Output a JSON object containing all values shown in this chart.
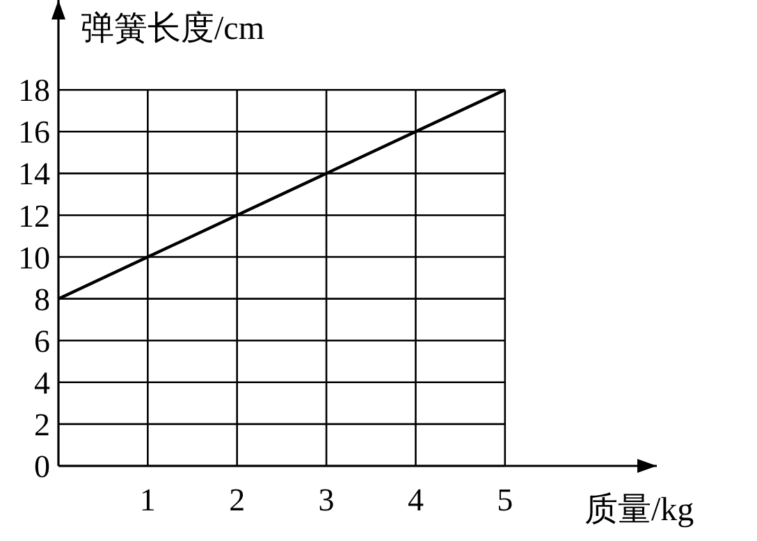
{
  "chart_data": {
    "type": "line",
    "xlabel": "质量/kg",
    "ylabel": "弹簧长度/cm",
    "x": [
      0,
      1,
      2,
      3,
      4,
      5
    ],
    "series": [
      {
        "color": "#000000",
        "values": [
          8,
          10,
          12,
          14,
          16,
          18
        ]
      }
    ],
    "xlim": [
      0,
      6.7
    ],
    "ylim": [
      0,
      22.3
    ],
    "xticks": [
      1,
      2,
      3,
      4,
      5
    ],
    "yticks": [
      0,
      2,
      4,
      6,
      8,
      10,
      12,
      14,
      16,
      18
    ],
    "grid": true,
    "marker": "none",
    "line_style": "solid"
  }
}
